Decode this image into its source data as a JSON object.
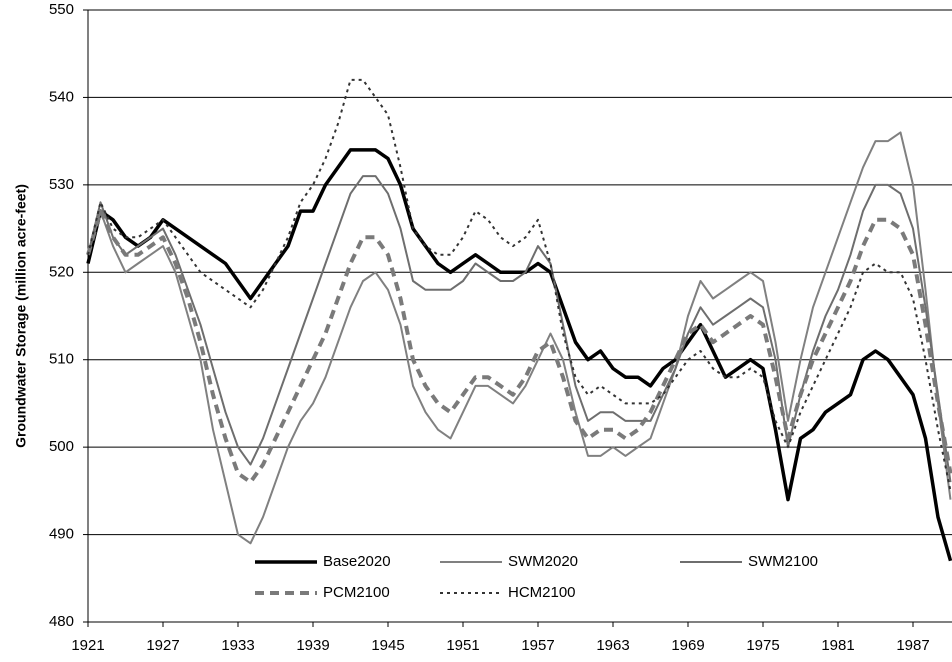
{
  "chart_data": {
    "type": "line",
    "y_label": "Groundwater Storage (million acre-feet)",
    "x": [
      1921,
      1922,
      1923,
      1924,
      1925,
      1926,
      1927,
      1928,
      1929,
      1930,
      1931,
      1932,
      1933,
      1934,
      1935,
      1936,
      1937,
      1938,
      1939,
      1940,
      1941,
      1942,
      1943,
      1944,
      1945,
      1946,
      1947,
      1948,
      1949,
      1950,
      1951,
      1952,
      1953,
      1954,
      1955,
      1956,
      1957,
      1958,
      1959,
      1960,
      1961,
      1962,
      1963,
      1964,
      1965,
      1966,
      1967,
      1968,
      1969,
      1970,
      1971,
      1972,
      1973,
      1974,
      1975,
      1976,
      1977,
      1978,
      1979,
      1980,
      1981,
      1982,
      1983,
      1984,
      1985,
      1986,
      1987,
      1988,
      1989,
      1990
    ],
    "xlim": [
      1921,
      1990
    ],
    "xticks": [
      1921,
      1927,
      1933,
      1939,
      1945,
      1951,
      1957,
      1963,
      1969,
      1975,
      1981,
      1987
    ],
    "ylim": [
      480,
      550
    ],
    "yticks": [
      480,
      490,
      500,
      510,
      520,
      530,
      540,
      550
    ],
    "grid": true,
    "series": [
      {
        "name": "Base2020",
        "color": "#000000",
        "line_style": "solid",
        "line_width": 3.5,
        "values": [
          521,
          527,
          526,
          524,
          523,
          524,
          526,
          525,
          524,
          523,
          522,
          521,
          519,
          517,
          519,
          521,
          523,
          527,
          527,
          530,
          532,
          534,
          534,
          534,
          533,
          530,
          525,
          523,
          521,
          520,
          521,
          522,
          521,
          520,
          520,
          520,
          521,
          520,
          516,
          512,
          510,
          511,
          509,
          508,
          508,
          507,
          509,
          510,
          512,
          514,
          511,
          508,
          509,
          510,
          509,
          502,
          494,
          501,
          502,
          504,
          505,
          506,
          510,
          511,
          510,
          508,
          506,
          501,
          492,
          487
        ]
      },
      {
        "name": "SWM2020",
        "color": "#808080",
        "line_style": "solid",
        "line_width": 2,
        "values": [
          522,
          527,
          523,
          520,
          521,
          522,
          523,
          520,
          515,
          510,
          502,
          496,
          490,
          489,
          492,
          496,
          500,
          503,
          505,
          508,
          512,
          516,
          519,
          520,
          518,
          514,
          507,
          504,
          502,
          501,
          504,
          507,
          507,
          506,
          505,
          507,
          510,
          513,
          510,
          504,
          499,
          499,
          500,
          499,
          500,
          501,
          505,
          509,
          515,
          519,
          517,
          518,
          519,
          520,
          519,
          512,
          503,
          510,
          516,
          520,
          524,
          528,
          532,
          535,
          535,
          536,
          530,
          518,
          505,
          494
        ]
      },
      {
        "name": "SWM2100",
        "color": "#6e6e6e",
        "line_style": "solid",
        "line_width": 2,
        "values": [
          522,
          528,
          524,
          522,
          523,
          524,
          525,
          522,
          518,
          514,
          509,
          504,
          500,
          498,
          501,
          505,
          509,
          513,
          517,
          521,
          525,
          529,
          531,
          531,
          529,
          525,
          519,
          518,
          518,
          518,
          519,
          521,
          520,
          519,
          519,
          520,
          523,
          521,
          514,
          507,
          503,
          504,
          504,
          503,
          503,
          503,
          506,
          509,
          513,
          516,
          514,
          515,
          516,
          517,
          516,
          510,
          500,
          506,
          511,
          515,
          518,
          522,
          527,
          530,
          530,
          529,
          525,
          516,
          506,
          496
        ]
      },
      {
        "name": "PCM2100",
        "color": "#7a7a7a",
        "line_style": "dashed",
        "line_width": 4,
        "values": [
          522,
          527,
          524,
          522,
          522,
          523,
          524,
          521,
          517,
          512,
          506,
          501,
          497,
          496,
          498,
          501,
          504,
          507,
          510,
          513,
          517,
          521,
          524,
          524,
          522,
          517,
          510,
          507,
          505,
          504,
          506,
          508,
          508,
          507,
          506,
          508,
          511,
          512,
          508,
          503,
          501,
          502,
          502,
          501,
          502,
          504,
          507,
          510,
          513,
          514,
          512,
          513,
          514,
          515,
          514,
          508,
          501,
          506,
          510,
          513,
          516,
          519,
          523,
          526,
          526,
          525,
          522,
          514,
          505,
          497
        ]
      },
      {
        "name": "HCM2100",
        "color": "#333333",
        "line_style": "dotted",
        "line_width": 2,
        "values": [
          522,
          528,
          525,
          524,
          524,
          525,
          526,
          524,
          522,
          520,
          519,
          518,
          517,
          516,
          518,
          521,
          524,
          528,
          530,
          533,
          537,
          542,
          542,
          540,
          538,
          532,
          525,
          523,
          522,
          522,
          524,
          527,
          526,
          524,
          523,
          524,
          526,
          521,
          513,
          508,
          506,
          507,
          506,
          505,
          505,
          505,
          506,
          508,
          510,
          511,
          509,
          508,
          508,
          509,
          508,
          503,
          500,
          504,
          507,
          510,
          513,
          516,
          520,
          521,
          520,
          520,
          517,
          510,
          502,
          495
        ]
      }
    ]
  }
}
